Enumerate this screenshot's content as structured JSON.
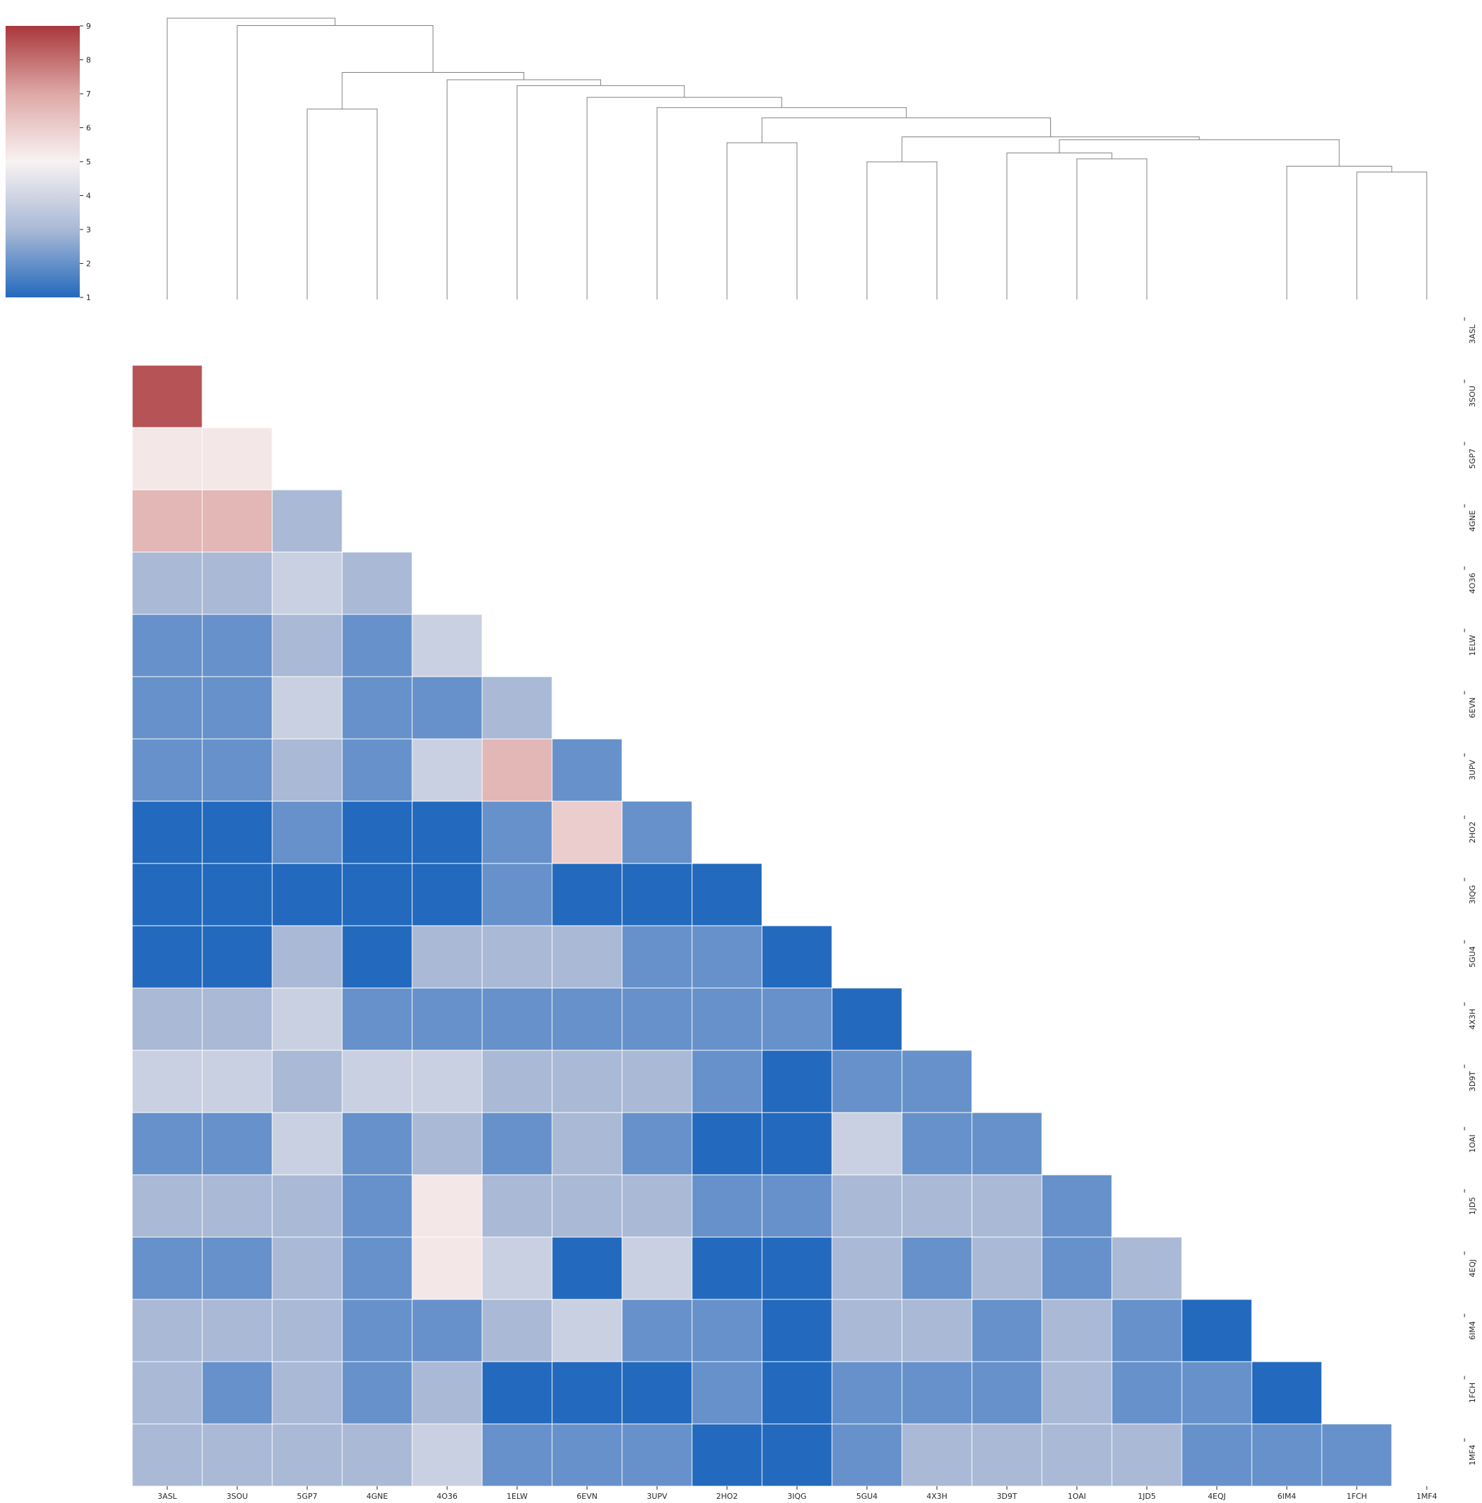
{
  "chart_data": {
    "type": "heatmap",
    "title": "",
    "xlabel": "",
    "ylabel": "",
    "labels": [
      "3ASL",
      "3SOU",
      "5GP7",
      "4GNE",
      "4O36",
      "1ELW",
      "6EVN",
      "3UPV",
      "2HO2",
      "3IQG",
      "5GU4",
      "4X3H",
      "3D9T",
      "1OAI",
      "1JD5",
      "4EQJ",
      "6IM4",
      "1FCH",
      "1MF4"
    ],
    "mask": "upper-triangle-including-diagonal",
    "colormap": "vlag",
    "colorbar": {
      "range": [
        1,
        9
      ],
      "ticks": [
        "1",
        "2",
        "3",
        "4",
        "5",
        "6",
        "7",
        "8",
        "9"
      ],
      "colors": [
        "#2369bd",
        "#a9b9d6",
        "#f8f2f2",
        "#dea8a7",
        "#a9373b"
      ]
    },
    "grid": false,
    "legend": "colorbar top-left",
    "rows": [
      [],
      [
        8.5
      ],
      [
        5.3,
        5.3
      ],
      [
        6.6,
        6.6,
        3.0
      ],
      [
        3.0,
        3.0,
        3.8,
        3.0
      ],
      [
        2.0,
        2.0,
        3.0,
        2.0,
        3.8
      ],
      [
        2.0,
        2.0,
        3.8,
        2.0,
        2.0,
        3.0
      ],
      [
        2.0,
        2.0,
        3.0,
        2.0,
        3.8,
        6.6,
        2.0
      ],
      [
        1.0,
        1.0,
        2.0,
        1.0,
        1.0,
        2.0,
        6.0,
        2.0
      ],
      [
        1.0,
        1.0,
        1.0,
        1.0,
        1.0,
        2.0,
        1.0,
        1.0,
        1.0
      ],
      [
        1.0,
        1.0,
        3.0,
        1.0,
        3.0,
        3.0,
        3.0,
        2.0,
        2.0,
        1.0
      ],
      [
        3.0,
        3.0,
        3.8,
        2.0,
        2.0,
        2.0,
        2.0,
        2.0,
        2.0,
        2.0,
        1.0
      ],
      [
        3.8,
        3.8,
        3.0,
        3.8,
        3.8,
        3.0,
        3.0,
        3.0,
        2.0,
        1.0,
        2.0,
        2.0
      ],
      [
        2.0,
        2.0,
        3.8,
        2.0,
        3.0,
        2.0,
        3.0,
        2.0,
        1.0,
        1.0,
        3.8,
        2.0,
        2.0
      ],
      [
        3.0,
        3.0,
        3.0,
        2.0,
        5.3,
        3.0,
        3.0,
        3.0,
        2.0,
        2.0,
        3.0,
        3.0,
        3.0,
        2.0
      ],
      [
        2.0,
        2.0,
        3.0,
        2.0,
        5.3,
        3.8,
        1.0,
        3.8,
        1.0,
        1.0,
        3.0,
        2.0,
        3.0,
        2.0,
        3.0
      ],
      [
        3.0,
        3.0,
        3.0,
        2.0,
        2.0,
        3.0,
        3.8,
        2.0,
        2.0,
        1.0,
        3.0,
        3.0,
        2.0,
        3.0,
        2.0,
        1.0
      ],
      [
        3.0,
        2.0,
        3.0,
        2.0,
        3.0,
        1.0,
        1.0,
        1.0,
        2.0,
        1.0,
        2.0,
        2.0,
        2.0,
        3.0,
        2.0,
        2.0,
        1.0
      ],
      [
        3.0,
        3.0,
        3.0,
        3.0,
        3.8,
        2.0,
        2.0,
        2.0,
        1.0,
        1.0,
        2.0,
        3.0,
        3.0,
        3.0,
        3.0,
        2.0,
        2.0,
        2.0
      ]
    ],
    "dendrogram": {
      "orientation": "top",
      "merges": [
        {
          "a": "leaf:18",
          "b": "leaf:17",
          "height": 0.87
        },
        {
          "a": "leaf:16",
          "b": "m0",
          "height": 0.91
        },
        {
          "a": "leaf:14",
          "b": "leaf:13",
          "height": 0.96
        },
        {
          "a": "leaf:12",
          "b": "m2",
          "height": 1.0
        },
        {
          "a": "leaf:11",
          "b": "leaf:10",
          "height": 0.94
        },
        {
          "a": "leaf:9",
          "b": "leaf:8",
          "height": 1.07
        },
        {
          "a": "m3",
          "b": "m1",
          "height": 1.09
        },
        {
          "a": "m4",
          "b": "m6",
          "height": 1.11
        },
        {
          "a": "m5",
          "b": "m7",
          "height": 1.24
        },
        {
          "a": "leaf:7",
          "b": "m8",
          "height": 1.31
        },
        {
          "a": "leaf:6",
          "b": "m9",
          "height": 1.38
        },
        {
          "a": "leaf:5",
          "b": "m10",
          "height": 1.46
        },
        {
          "a": "leaf:4",
          "b": "m11",
          "height": 1.5
        },
        {
          "a": "leaf:2",
          "b": "leaf:3",
          "height": 1.3
        },
        {
          "a": "m13",
          "b": "m12",
          "height": 1.55
        },
        {
          "a": "leaf:1",
          "b": "m14",
          "height": 1.87
        },
        {
          "a": "leaf:0",
          "b": "m15",
          "height": 1.92
        }
      ]
    }
  }
}
